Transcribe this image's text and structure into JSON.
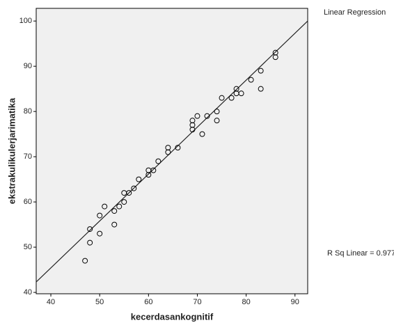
{
  "chart_data": {
    "type": "scatter",
    "x_label": "kecerdasankognitif",
    "y_label": "ekstrakulikulerjarimatika",
    "legend_title": "Linear Regression",
    "annotation": "R Sq Linear = 0.977",
    "x": [
      47,
      48,
      48,
      50,
      50,
      51,
      53,
      53,
      54,
      55,
      55,
      56,
      57,
      58,
      60,
      60,
      61,
      62,
      64,
      64,
      66,
      69,
      69,
      69,
      70,
      71,
      72,
      74,
      74,
      75,
      77,
      78,
      78,
      79,
      81,
      83,
      83,
      86,
      86
    ],
    "values": [
      47,
      51,
      54,
      53,
      57,
      59,
      55,
      58,
      59,
      60,
      62,
      62,
      63,
      65,
      66,
      67,
      67,
      69,
      71,
      72,
      72,
      78,
      77,
      76,
      79,
      75,
      79,
      80,
      78,
      83,
      83,
      85,
      84,
      84,
      87,
      89,
      85,
      93,
      92
    ],
    "fit_line": {
      "x": [
        37,
        92.6
      ],
      "values": [
        42.3,
        100
      ]
    },
    "color": "#000000",
    "xlim": [
      37,
      92.6
    ],
    "xticks": [
      40,
      50,
      60,
      70,
      80,
      90
    ],
    "ylim": [
      39.7,
      102.8
    ],
    "yticks": [
      40,
      50,
      60,
      70,
      80,
      90,
      100
    ]
  }
}
